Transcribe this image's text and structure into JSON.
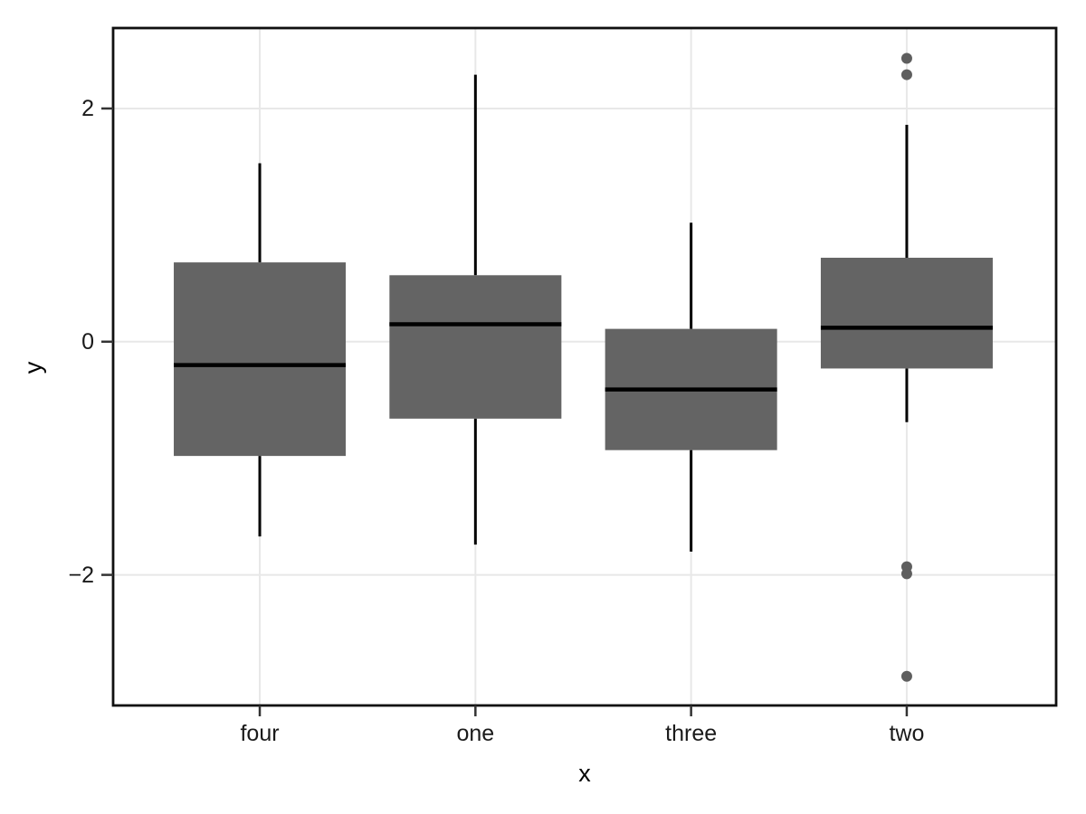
{
  "chart_data": {
    "type": "boxplot",
    "title": "",
    "xlabel": "x",
    "ylabel": "y",
    "categories": [
      "four",
      "one",
      "three",
      "two"
    ],
    "ylim": [
      -3.12,
      2.69
    ],
    "y_ticks": [
      {
        "value": 2,
        "label": "2"
      },
      {
        "value": 0,
        "label": "0"
      },
      {
        "value": -2,
        "label": "−2"
      }
    ],
    "grid": true,
    "legend_position": "none",
    "series": [
      {
        "category": "four",
        "whisker_low": -1.67,
        "q1": -0.98,
        "median": -0.2,
        "q3": 0.68,
        "whisker_high": 1.53,
        "outliers": []
      },
      {
        "category": "one",
        "whisker_low": -1.74,
        "q1": -0.66,
        "median": 0.15,
        "q3": 0.57,
        "whisker_high": 2.29,
        "outliers": []
      },
      {
        "category": "three",
        "whisker_low": -1.8,
        "q1": -0.93,
        "median": -0.41,
        "q3": 0.11,
        "whisker_high": 1.02,
        "outliers": []
      },
      {
        "category": "two",
        "whisker_low": -0.69,
        "q1": -0.23,
        "median": 0.12,
        "q3": 0.72,
        "whisker_high": 1.86,
        "outliers": [
          2.43,
          2.29,
          -1.93,
          -1.99,
          -2.87
        ]
      }
    ],
    "colors": {
      "box_fill": "#646464",
      "box_line": "#000000",
      "outlier": "#5e5e5e",
      "grid": "#e8e8e8",
      "panel_border": "#101010",
      "tick": "#333333",
      "background": "#ffffff"
    }
  }
}
